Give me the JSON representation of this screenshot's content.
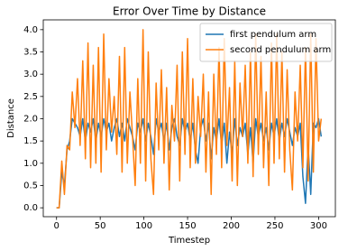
{
  "chart_data": {
    "type": "line",
    "title": "Error Over Time by Distance",
    "xlabel": "Timestep",
    "ylabel": "Distance",
    "x": [
      0,
      3,
      6,
      9,
      12,
      15,
      18,
      21,
      24,
      27,
      30,
      33,
      36,
      39,
      42,
      45,
      48,
      51,
      54,
      57,
      60,
      63,
      66,
      69,
      72,
      75,
      78,
      81,
      84,
      87,
      90,
      93,
      96,
      99,
      102,
      105,
      108,
      111,
      114,
      117,
      120,
      123,
      126,
      129,
      132,
      135,
      138,
      141,
      144,
      147,
      150,
      153,
      156,
      159,
      162,
      165,
      168,
      171,
      174,
      177,
      180,
      183,
      186,
      189,
      192,
      195,
      198,
      201,
      204,
      207,
      210,
      213,
      216,
      219,
      222,
      225,
      228,
      231,
      234,
      237,
      240,
      243,
      246,
      249,
      252,
      255,
      258,
      261,
      264,
      267,
      270,
      273,
      276,
      279,
      282,
      285,
      288,
      291,
      294,
      297,
      300,
      303
    ],
    "series": [
      {
        "name": "first pendulum arm",
        "color": "#1f77b4",
        "values": [
          0,
          0,
          0.8,
          0.5,
          1.3,
          1.5,
          2.0,
          1.9,
          1.8,
          1.6,
          2.0,
          1.5,
          1.9,
          1.7,
          2.0,
          1.5,
          1.9,
          1.6,
          2.0,
          1.7,
          1.9,
          1.5,
          1.8,
          2.0,
          1.6,
          1.9,
          1.5,
          2.0,
          1.8,
          1.6,
          1.3,
          1.9,
          1.7,
          2.0,
          1.5,
          1.9,
          1.6,
          1.2,
          2.0,
          1.7,
          1.9,
          1.5,
          1.9,
          1.3,
          1.8,
          2.0,
          1.6,
          1.4,
          2.0,
          1.7,
          1.9,
          1.5,
          1.9,
          1.3,
          1.0,
          1.8,
          2.0,
          1.5,
          1.9,
          1.1,
          1.8,
          1.5,
          2.0,
          1.4,
          1.9,
          1.0,
          1.7,
          1.2,
          2.0,
          1.4,
          1.8,
          1.6,
          1.9,
          1.2,
          1.8,
          1.0,
          2.0,
          1.6,
          1.9,
          1.5,
          1.8,
          1.3,
          1.9,
          1.6,
          2.0,
          1.5,
          1.9,
          1.6,
          2.0,
          1.7,
          1.4,
          1.8,
          1.6,
          1.9,
          0.7,
          0.1,
          1.4,
          0.3,
          1.9,
          1.8,
          2.0,
          1.6
        ]
      },
      {
        "name": "second pendulum arm",
        "color": "#ff7f0e",
        "values": [
          0,
          0,
          1.05,
          0.3,
          1.4,
          1.3,
          2.6,
          1.8,
          2.9,
          1.4,
          3.3,
          1.1,
          3.7,
          0.9,
          3.2,
          1.0,
          3.6,
          0.8,
          3.9,
          1.3,
          2.9,
          1.7,
          2.5,
          1.2,
          3.4,
          0.8,
          3.6,
          1.0,
          2.6,
          1.6,
          0.5,
          2.9,
          1.0,
          4.0,
          0.6,
          3.5,
          1.1,
          0.3,
          2.8,
          1.3,
          3.1,
          1.0,
          2.7,
          0.4,
          2.3,
          1.5,
          3.2,
          0.6,
          3.5,
          1.2,
          3.8,
          0.9,
          2.9,
          1.0,
          2.5,
          1.6,
          3.0,
          0.8,
          2.6,
          0.3,
          3.0,
          1.2,
          3.6,
          0.9,
          3.8,
          1.4,
          2.7,
          0.6,
          3.3,
          0.5,
          2.8,
          1.6,
          3.2,
          1.0,
          3.5,
          0.7,
          3.9,
          1.2,
          3.4,
          0.9,
          2.6,
          0.5,
          3.7,
          1.0,
          3.9,
          1.1,
          3.5,
          0.8,
          3.1,
          1.3,
          0.4,
          2.6,
          1.5,
          3.2,
          0.9,
          3.6,
          0.6,
          3.9,
          0.8,
          3.8,
          1.5,
          2.0
        ]
      }
    ],
    "xlim": [
      -15.2,
      319.2
    ],
    "ylim": [
      -0.2,
      4.22
    ],
    "xticks": [
      0,
      50,
      100,
      150,
      200,
      250,
      300
    ],
    "yticks": [
      {
        "value": 0,
        "label": "0.0"
      },
      {
        "value": 0.5,
        "label": "0.5"
      },
      {
        "value": 1,
        "label": "1.0"
      },
      {
        "value": 1.5,
        "label": "1.5"
      },
      {
        "value": 2,
        "label": "2.0"
      },
      {
        "value": 2.5,
        "label": "2.5"
      },
      {
        "value": 3,
        "label": "3.0"
      },
      {
        "value": 3.5,
        "label": "3.5"
      },
      {
        "value": 4,
        "label": "4.0"
      }
    ],
    "grid": false,
    "legend": "upper right"
  }
}
